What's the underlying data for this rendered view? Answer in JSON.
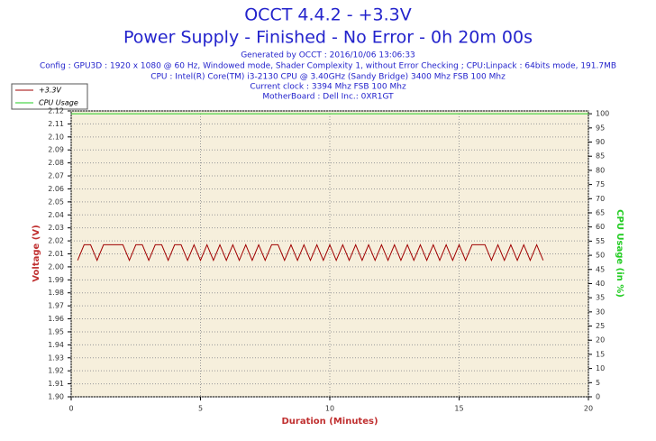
{
  "chart_data": {
    "type": "line",
    "title": "OCCT 4.4.2 - +3.3V",
    "subtitle": "Power Supply - Finished - No Error - 0h 20m 00s",
    "info": [
      "Generated by OCCT : 2016/10/06 13:06:33",
      "Config : GPU3D : 1920 x 1080 @ 60 Hz, Windowed mode, Shader Complexity 1, without Error Checking ; CPU:Linpack : 64bits mode, 191.7MB",
      "CPU : Intel(R) Core(TM) i3-2130 CPU @ 3.40GHz (Sandy Bridge) 3400 Mhz FSB 100 Mhz",
      "Current clock : 3394 Mhz FSB 100 Mhz",
      "MotherBoard : Dell Inc.: 0XR1GT"
    ],
    "xlabel": "Duration (Minutes)",
    "ylabel": "Voltage (V)",
    "y2label": "CPU Usage (in %)",
    "xlim": [
      0,
      20
    ],
    "xticks": [
      0,
      5,
      10,
      15,
      20
    ],
    "ylim": [
      1.9,
      2.12
    ],
    "yticks": [
      {
        "value": 1.9,
        "label": "1.90"
      },
      1.91,
      1.92,
      1.93,
      1.94,
      1.95,
      1.96,
      1.97,
      1.98,
      1.99,
      {
        "value": 2.0,
        "label": "2.00"
      },
      2.01,
      2.02,
      2.03,
      2.04,
      2.05,
      2.06,
      2.07,
      2.08,
      2.09,
      {
        "value": 2.1,
        "label": "2.10"
      },
      2.11,
      2.12
    ],
    "y2lim": [
      0,
      101
    ],
    "y2ticks": [
      0,
      5,
      10,
      15,
      20,
      25,
      30,
      35,
      40,
      45,
      50,
      55,
      60,
      65,
      70,
      75,
      80,
      85,
      90,
      95,
      100
    ],
    "grid": true,
    "legend": "upper left",
    "series": [
      {
        "name": "+3.3V",
        "color": "#a00000",
        "x": [
          0.25,
          0.5,
          0.75,
          1,
          1.25,
          1.5,
          1.75,
          2,
          2.25,
          2.5,
          2.75,
          3,
          3.25,
          3.5,
          3.75,
          4,
          4.25,
          4.5,
          4.75,
          5,
          5.25,
          5.5,
          5.75,
          6,
          6.25,
          6.5,
          6.75,
          7,
          7.25,
          7.5,
          7.75,
          8,
          8.25,
          8.5,
          8.75,
          9,
          9.25,
          9.5,
          9.75,
          10,
          10.25,
          10.5,
          10.75,
          11,
          11.25,
          11.5,
          11.75,
          12,
          12.25,
          12.5,
          12.75,
          13,
          13.25,
          13.5,
          13.75,
          14,
          14.25,
          14.5,
          14.75,
          15,
          15.25,
          15.5,
          15.75,
          16,
          16.25,
          16.5,
          16.75,
          17,
          17.25,
          17.5,
          17.75,
          18,
          18.25
        ],
        "values": [
          2.005,
          2.017,
          2.017,
          2.005,
          2.017,
          2.017,
          2.017,
          2.017,
          2.005,
          2.017,
          2.017,
          2.005,
          2.017,
          2.017,
          2.005,
          2.017,
          2.017,
          2.005,
          2.017,
          2.005,
          2.017,
          2.005,
          2.017,
          2.005,
          2.017,
          2.005,
          2.017,
          2.005,
          2.017,
          2.005,
          2.017,
          2.017,
          2.005,
          2.017,
          2.005,
          2.017,
          2.005,
          2.017,
          2.005,
          2.017,
          2.005,
          2.017,
          2.005,
          2.017,
          2.005,
          2.017,
          2.005,
          2.017,
          2.005,
          2.017,
          2.005,
          2.017,
          2.005,
          2.017,
          2.005,
          2.017,
          2.005,
          2.017,
          2.005,
          2.017,
          2.005,
          2.017,
          2.017,
          2.017,
          2.005,
          2.017,
          2.005,
          2.017,
          2.005,
          2.017,
          2.005,
          2.017,
          2.005
        ]
      },
      {
        "name": "CPU Usage",
        "color": "#22cc22",
        "axis": "y2",
        "x": [
          0,
          20
        ],
        "values": [
          100,
          100
        ]
      }
    ]
  }
}
